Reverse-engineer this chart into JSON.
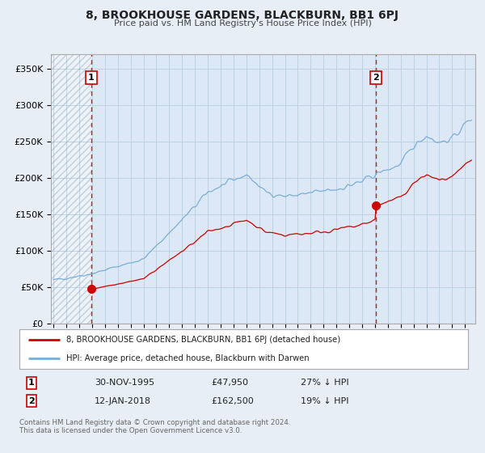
{
  "title": "8, BROOKHOUSE GARDENS, BLACKBURN, BB1 6PJ",
  "subtitle": "Price paid vs. HM Land Registry's House Price Index (HPI)",
  "bg_color": "#e8eef5",
  "plot_bg_color": "#dce8f5",
  "grid_color": "#b8cfe0",
  "red_line_color": "#cc0000",
  "blue_line_color": "#7aaed6",
  "vline_color": "#cc0000",
  "sale1_value": 47950,
  "sale1_label": "30-NOV-1995",
  "sale1_price": "£47,950",
  "sale1_hpi": "27% ↓ HPI",
  "sale2_value": 162500,
  "sale2_label": "12-JAN-2018",
  "sale2_price": "£162,500",
  "sale2_hpi": "19% ↓ HPI",
  "ylim": [
    0,
    370000
  ],
  "yticks": [
    0,
    50000,
    100000,
    150000,
    200000,
    250000,
    300000,
    350000
  ],
  "legend_label_red": "8, BROOKHOUSE GARDENS, BLACKBURN, BB1 6PJ (detached house)",
  "legend_label_blue": "HPI: Average price, detached house, Blackburn with Darwen",
  "footnote": "Contains HM Land Registry data © Crown copyright and database right 2024.\nThis data is licensed under the Open Government Licence v3.0."
}
